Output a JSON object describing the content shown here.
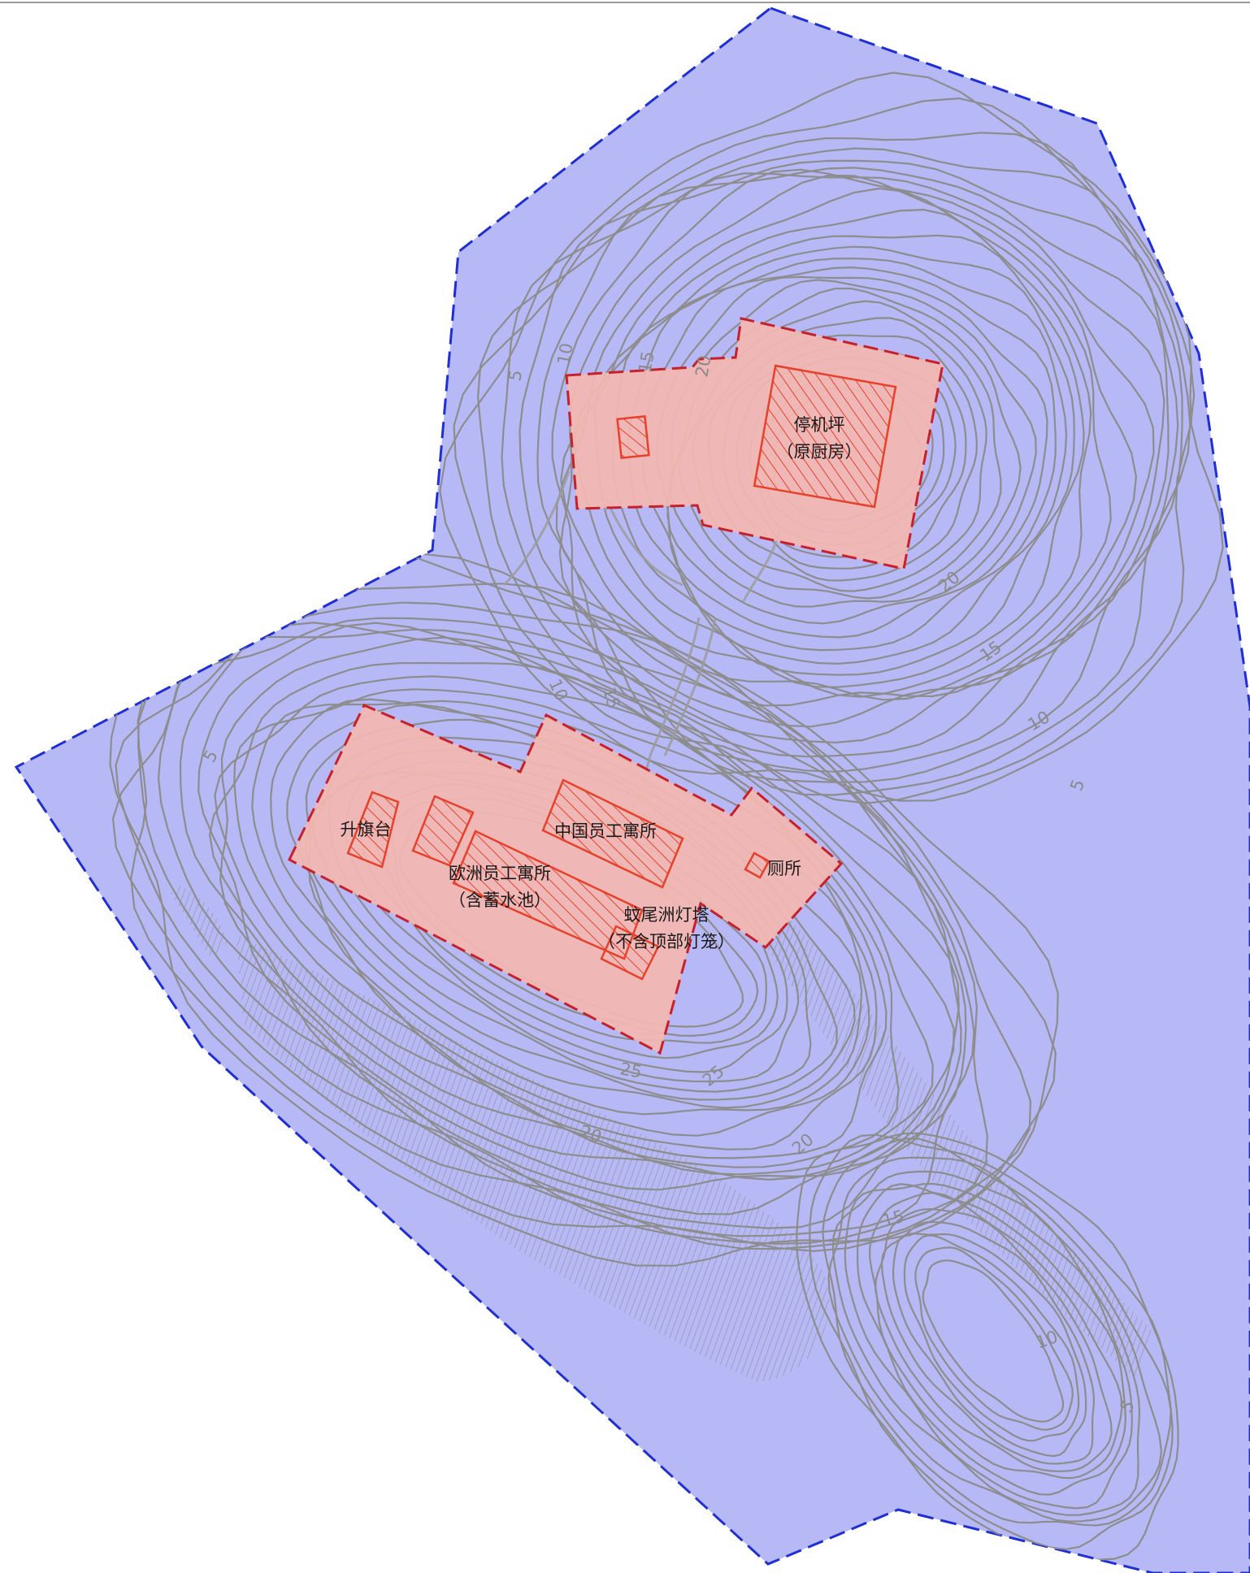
{
  "colors": {
    "boundary_fill": "#b6b9f6",
    "boundary_stroke": "#1f2fd6",
    "zone_fill": "#f5b8b0",
    "zone_stroke": "#c8202a",
    "building_stroke": "#e8402a",
    "contour": "#8d8d8d"
  },
  "labels": {
    "helipad": "停机坪",
    "helipad_note": "（原厨房）",
    "flag_platform": "升旗台",
    "chinese_dorm": "中国员工寓所",
    "european_dorm": "欧洲员工寓所",
    "european_dorm_note": "（含蓄水池）",
    "lighthouse": "蚊尾洲灯塔",
    "lighthouse_note": "（不含顶部灯笼）",
    "toilet": "厕所"
  },
  "elevations": {
    "e5_a": "5",
    "e5_b": "5",
    "e5_c": "5",
    "e5_d": "5",
    "e10_a": "10",
    "e10_b": "10",
    "e10_c": "10",
    "e10_d": "10",
    "e15_a": "15",
    "e15_b": "15",
    "e15_c": "15",
    "e15_d": "15",
    "e20_a": "20",
    "e20_b": "20",
    "e20_c": "20",
    "e20_d": "20",
    "e25_a": "25",
    "e25_b": "25"
  }
}
